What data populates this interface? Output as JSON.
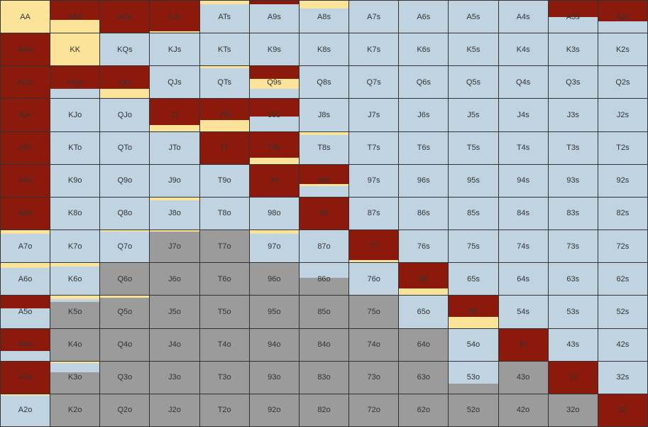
{
  "colors": {
    "raise": "#8b1a0c",
    "call": "#fbe39a",
    "limp": "#c0d3e0",
    "fold": "#9b9b9b",
    "gridline": "#333333",
    "label": "#333333"
  },
  "hands": [
    [
      "AA",
      "AKs",
      "AQs",
      "AJs",
      "ATs",
      "A9s",
      "A8s",
      "A7s",
      "A6s",
      "A5s",
      "A4s",
      "A3s",
      "A2s"
    ],
    [
      "AKo",
      "KK",
      "KQs",
      "KJs",
      "KTs",
      "K9s",
      "K8s",
      "K7s",
      "K6s",
      "K5s",
      "K4s",
      "K3s",
      "K2s"
    ],
    [
      "AQo",
      "KQo",
      "QQ",
      "QJs",
      "QTs",
      "Q9s",
      "Q8s",
      "Q7s",
      "Q6s",
      "Q5s",
      "Q4s",
      "Q3s",
      "Q2s"
    ],
    [
      "AJo",
      "KJo",
      "QJo",
      "JJ",
      "JTs",
      "J9s",
      "J8s",
      "J7s",
      "J6s",
      "J5s",
      "J4s",
      "J3s",
      "J2s"
    ],
    [
      "ATo",
      "KTo",
      "QTo",
      "JTo",
      "TT",
      "T9s",
      "T8s",
      "T7s",
      "T6s",
      "T5s",
      "T4s",
      "T3s",
      "T2s"
    ],
    [
      "A9o",
      "K9o",
      "Q9o",
      "J9o",
      "T9o",
      "99",
      "98s",
      "97s",
      "96s",
      "95s",
      "94s",
      "93s",
      "92s"
    ],
    [
      "A8o",
      "K8o",
      "Q8o",
      "J8o",
      "T8o",
      "98o",
      "88",
      "87s",
      "86s",
      "85s",
      "84s",
      "83s",
      "82s"
    ],
    [
      "A7o",
      "K7o",
      "Q7o",
      "J7o",
      "T7o",
      "97o",
      "87o",
      "77",
      "76s",
      "75s",
      "74s",
      "73s",
      "72s"
    ],
    [
      "A6o",
      "K6o",
      "Q6o",
      "J6o",
      "T6o",
      "96o",
      "86o",
      "76o",
      "66",
      "65s",
      "64s",
      "63s",
      "62s"
    ],
    [
      "A5o",
      "K5o",
      "Q5o",
      "J5o",
      "T5o",
      "95o",
      "85o",
      "75o",
      "65o",
      "55",
      "54s",
      "53s",
      "52s"
    ],
    [
      "A4o",
      "K4o",
      "Q4o",
      "J4o",
      "T4o",
      "94o",
      "84o",
      "74o",
      "64o",
      "54o",
      "44",
      "43s",
      "42s"
    ],
    [
      "A3o",
      "K3o",
      "Q3o",
      "J3o",
      "T3o",
      "93o",
      "83o",
      "73o",
      "63o",
      "53o",
      "43o",
      "33",
      "32s"
    ],
    [
      "A2o",
      "K2o",
      "Q2o",
      "J2o",
      "T2o",
      "92o",
      "82o",
      "72o",
      "62o",
      "52o",
      "42o",
      "32o",
      "22"
    ]
  ],
  "frequencies": [
    [
      [
        0,
        1,
        0,
        0
      ],
      [
        0.6,
        0.4,
        0,
        0
      ],
      [
        1,
        0,
        0,
        0
      ],
      [
        0.95,
        0.05,
        0,
        0
      ],
      [
        0,
        0.1,
        0.9,
        0
      ],
      [
        0.12,
        0,
        0.88,
        0
      ],
      [
        0,
        0.25,
        0.75,
        0
      ],
      [
        0,
        0,
        1,
        0
      ],
      [
        0,
        0,
        1,
        0
      ],
      [
        0,
        0,
        1,
        0
      ],
      [
        0,
        0,
        1,
        0
      ],
      [
        0.5,
        0,
        0.5,
        0
      ],
      [
        0.65,
        0,
        0.35,
        0
      ]
    ],
    [
      [
        1,
        0,
        0,
        0
      ],
      [
        0,
        1,
        0,
        0
      ],
      [
        0,
        0,
        1,
        0
      ],
      [
        0,
        0,
        1,
        0
      ],
      [
        0,
        0,
        1,
        0
      ],
      [
        0,
        0,
        1,
        0
      ],
      [
        0,
        0,
        1,
        0
      ],
      [
        0,
        0,
        1,
        0
      ],
      [
        0,
        0,
        1,
        0
      ],
      [
        0,
        0,
        1,
        0
      ],
      [
        0,
        0,
        1,
        0
      ],
      [
        0,
        0,
        1,
        0
      ],
      [
        0,
        0,
        1,
        0
      ]
    ],
    [
      [
        1,
        0,
        0,
        0
      ],
      [
        0.7,
        0,
        0.3,
        0
      ],
      [
        0.7,
        0.3,
        0,
        0
      ],
      [
        0,
        0,
        1,
        0
      ],
      [
        0,
        0.07,
        0.93,
        0
      ],
      [
        0.4,
        0.3,
        0.3,
        0
      ],
      [
        0,
        0,
        1,
        0
      ],
      [
        0,
        0,
        1,
        0
      ],
      [
        0,
        0,
        1,
        0
      ],
      [
        0,
        0,
        1,
        0
      ],
      [
        0,
        0,
        1,
        0
      ],
      [
        0,
        0,
        1,
        0
      ],
      [
        0,
        0,
        1,
        0
      ]
    ],
    [
      [
        1,
        0,
        0,
        0
      ],
      [
        0,
        0,
        1,
        0
      ],
      [
        0,
        0,
        1,
        0
      ],
      [
        0.8,
        0.2,
        0,
        0
      ],
      [
        0.65,
        0.35,
        0,
        0
      ],
      [
        0.55,
        0,
        0.45,
        0
      ],
      [
        0,
        0,
        1,
        0
      ],
      [
        0,
        0,
        1,
        0
      ],
      [
        0,
        0,
        1,
        0
      ],
      [
        0,
        0,
        1,
        0
      ],
      [
        0,
        0,
        1,
        0
      ],
      [
        0,
        0,
        1,
        0
      ],
      [
        0,
        0,
        1,
        0
      ]
    ],
    [
      [
        1,
        0,
        0,
        0
      ],
      [
        0,
        0,
        1,
        0
      ],
      [
        0,
        0,
        1,
        0
      ],
      [
        0,
        0,
        1,
        0
      ],
      [
        1,
        0,
        0,
        0
      ],
      [
        0.8,
        0.2,
        0,
        0
      ],
      [
        0,
        0.1,
        0.9,
        0
      ],
      [
        0,
        0,
        1,
        0
      ],
      [
        0,
        0,
        1,
        0
      ],
      [
        0,
        0,
        1,
        0
      ],
      [
        0,
        0,
        1,
        0
      ],
      [
        0,
        0,
        1,
        0
      ],
      [
        0,
        0,
        1,
        0
      ]
    ],
    [
      [
        1,
        0,
        0,
        0
      ],
      [
        0,
        0,
        1,
        0
      ],
      [
        0,
        0,
        1,
        0
      ],
      [
        0,
        0,
        1,
        0
      ],
      [
        0,
        0,
        1,
        0
      ],
      [
        1,
        0,
        0,
        0
      ],
      [
        0.6,
        0.07,
        0.33,
        0
      ],
      [
        0,
        0,
        1,
        0
      ],
      [
        0,
        0,
        1,
        0
      ],
      [
        0,
        0,
        1,
        0
      ],
      [
        0,
        0,
        1,
        0
      ],
      [
        0,
        0,
        1,
        0
      ],
      [
        0,
        0,
        1,
        0
      ]
    ],
    [
      [
        1,
        0,
        0,
        0
      ],
      [
        0,
        0,
        1,
        0
      ],
      [
        0,
        0,
        1,
        0
      ],
      [
        0,
        0.1,
        0.9,
        0
      ],
      [
        0,
        0,
        1,
        0
      ],
      [
        0,
        0,
        1,
        0
      ],
      [
        1,
        0,
        0,
        0
      ],
      [
        0,
        0,
        1,
        0
      ],
      [
        0,
        0,
        1,
        0
      ],
      [
        0,
        0,
        1,
        0
      ],
      [
        0,
        0,
        1,
        0
      ],
      [
        0,
        0,
        1,
        0
      ],
      [
        0,
        0,
        1,
        0
      ]
    ],
    [
      [
        0,
        0.1,
        0.9,
        0
      ],
      [
        0,
        0,
        1,
        0
      ],
      [
        0,
        0.05,
        0.95,
        0
      ],
      [
        0,
        0.05,
        0,
        0.95
      ],
      [
        0,
        0,
        0,
        1
      ],
      [
        0,
        0.1,
        0.9,
        0
      ],
      [
        0,
        0,
        1,
        0
      ],
      [
        0.92,
        0.08,
        0,
        0
      ],
      [
        0,
        0,
        1,
        0
      ],
      [
        0,
        0,
        1,
        0
      ],
      [
        0,
        0,
        1,
        0
      ],
      [
        0,
        0,
        1,
        0
      ],
      [
        0,
        0,
        1,
        0
      ]
    ],
    [
      [
        0,
        0.15,
        0.85,
        0
      ],
      [
        0,
        0.1,
        0.9,
        0
      ],
      [
        0,
        0,
        0,
        1
      ],
      [
        0,
        0,
        0,
        1
      ],
      [
        0,
        0,
        0,
        1
      ],
      [
        0,
        0,
        0,
        1
      ],
      [
        0,
        0,
        0.45,
        0.55
      ],
      [
        0,
        0,
        1,
        0
      ],
      [
        0.8,
        0.2,
        0,
        0
      ],
      [
        0,
        0,
        1,
        0
      ],
      [
        0,
        0,
        1,
        0
      ],
      [
        0,
        0,
        1,
        0
      ],
      [
        0,
        0,
        1,
        0
      ]
    ],
    [
      [
        0.4,
        0,
        0.6,
        0
      ],
      [
        0,
        0.1,
        0.1,
        0.8
      ],
      [
        0,
        0.05,
        0,
        0.95
      ],
      [
        0,
        0,
        0,
        1
      ],
      [
        0,
        0,
        0,
        1
      ],
      [
        0,
        0,
        0,
        1
      ],
      [
        0,
        0,
        0,
        1
      ],
      [
        0,
        0,
        0,
        1
      ],
      [
        0,
        0,
        1,
        0
      ],
      [
        0.65,
        0.35,
        0,
        0
      ],
      [
        0,
        0,
        1,
        0
      ],
      [
        0,
        0,
        1,
        0
      ],
      [
        0,
        0,
        1,
        0
      ]
    ],
    [
      [
        0.7,
        0,
        0.3,
        0
      ],
      [
        0,
        0,
        0,
        1
      ],
      [
        0,
        0,
        0,
        1
      ],
      [
        0,
        0,
        0,
        1
      ],
      [
        0,
        0,
        0,
        1
      ],
      [
        0,
        0,
        0,
        1
      ],
      [
        0,
        0,
        0,
        1
      ],
      [
        0,
        0,
        0,
        1
      ],
      [
        0,
        0,
        0,
        1
      ],
      [
        0,
        0,
        1,
        0
      ],
      [
        1,
        0,
        0,
        0
      ],
      [
        0,
        0,
        1,
        0
      ],
      [
        0,
        0,
        1,
        0
      ]
    ],
    [
      [
        1,
        0,
        0,
        0
      ],
      [
        0,
        0.05,
        0.3,
        0.65
      ],
      [
        0,
        0,
        0,
        1
      ],
      [
        0,
        0,
        0,
        1
      ],
      [
        0,
        0,
        0,
        1
      ],
      [
        0,
        0,
        0,
        1
      ],
      [
        0,
        0,
        0,
        1
      ],
      [
        0,
        0,
        0,
        1
      ],
      [
        0,
        0,
        0,
        1
      ],
      [
        0,
        0,
        0.7,
        0.3
      ],
      [
        0,
        0,
        0,
        1
      ],
      [
        1,
        0,
        0,
        0
      ],
      [
        0,
        0,
        1,
        0
      ]
    ],
    [
      [
        0,
        0.05,
        0.95,
        0
      ],
      [
        0,
        0,
        0,
        1
      ],
      [
        0,
        0,
        0,
        1
      ],
      [
        0,
        0,
        0,
        1
      ],
      [
        0,
        0,
        0,
        1
      ],
      [
        0,
        0,
        0,
        1
      ],
      [
        0,
        0,
        0,
        1
      ],
      [
        0,
        0,
        0,
        1
      ],
      [
        0,
        0,
        0,
        1
      ],
      [
        0,
        0,
        0,
        1
      ],
      [
        0,
        0,
        0,
        1
      ],
      [
        0,
        0,
        0,
        1
      ],
      [
        1,
        0,
        0,
        0
      ]
    ]
  ]
}
